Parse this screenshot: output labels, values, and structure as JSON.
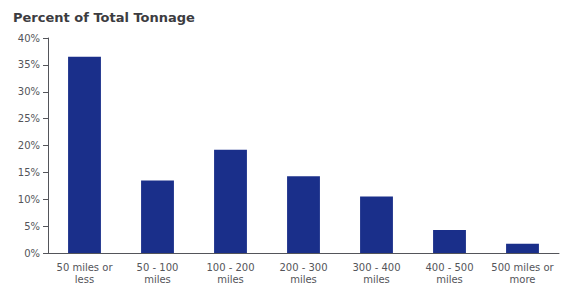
{
  "chart_data": {
    "type": "bar",
    "title": "Percent of Total Tonnage",
    "categories": [
      "50 miles or\nless",
      "50 - 100\nmiles",
      "100 - 200\nmiles",
      "200 - 300\nmiles",
      "300 - 400\nmiles",
      "400 - 500\nmiles",
      "500 miles or\nmore"
    ],
    "values": [
      0.365,
      0.135,
      0.192,
      0.143,
      0.105,
      0.043,
      0.017
    ],
    "color": "#1a2f8a",
    "ylim": [
      0,
      0.4
    ],
    "yticks": [
      {
        "value": 0.0,
        "label": "0%"
      },
      {
        "value": 0.05,
        "label": "5%"
      },
      {
        "value": 0.1,
        "label": "10%"
      },
      {
        "value": 0.15,
        "label": "15%"
      },
      {
        "value": 0.2,
        "label": "20%"
      },
      {
        "value": 0.25,
        "label": "25%"
      },
      {
        "value": 0.3,
        "label": "30%"
      },
      {
        "value": 0.35,
        "label": "35%"
      },
      {
        "value": 0.4,
        "label": "40%"
      }
    ],
    "grid": false
  }
}
